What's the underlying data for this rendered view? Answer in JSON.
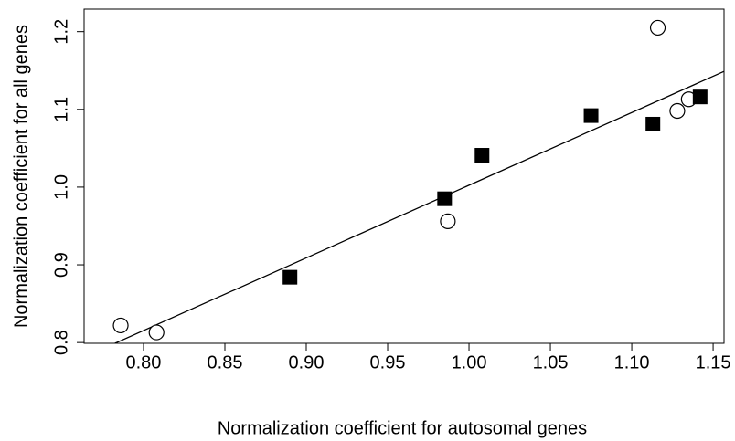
{
  "chart_data": {
    "type": "scatter",
    "x_label": "Normalization coefficient for autosomal genes",
    "y_label": "Normalization coefficient for all genes",
    "xlim": [
      0.7635,
      1.1567
    ],
    "ylim": [
      0.799,
      1.229
    ],
    "xticks": [
      {
        "value": 0.8,
        "label": "0.80"
      },
      0.85,
      {
        "value": 0.9,
        "label": "0.90"
      },
      0.95,
      {
        "value": 1.0,
        "label": "1.00"
      },
      1.05,
      {
        "value": 1.1,
        "label": "1.10"
      },
      1.15
    ],
    "yticks": [
      0.8,
      0.9,
      {
        "value": 1.0,
        "label": "1.0"
      },
      1.1,
      1.2
    ],
    "series": [
      {
        "marker": "circle",
        "color": "#000000",
        "x": [
          0.786,
          0.808,
          0.987,
          1.116,
          1.128,
          1.135
        ],
        "values": [
          0.822,
          0.813,
          0.956,
          1.205,
          1.098,
          1.113
        ]
      },
      {
        "marker": "square",
        "color": "#000000",
        "x": [
          0.89,
          0.985,
          1.008,
          1.075,
          1.113,
          1.142
        ],
        "values": [
          0.884,
          0.985,
          1.041,
          1.092,
          1.081,
          1.116
        ]
      }
    ],
    "lines": [
      {
        "color": "#000000",
        "x": [
          0.76,
          1.16
        ],
        "values": [
          0.778,
          1.152
        ]
      }
    ]
  }
}
